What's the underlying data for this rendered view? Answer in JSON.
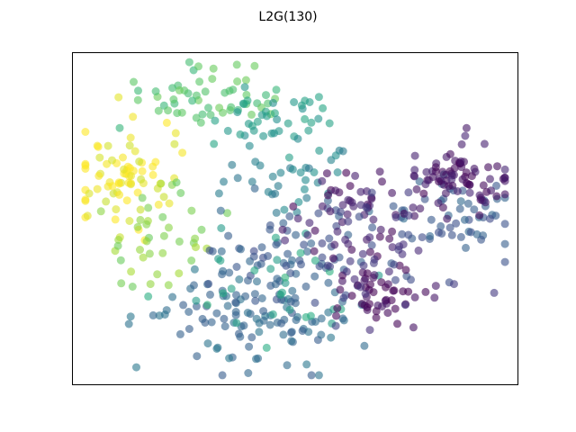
{
  "chart_data": {
    "type": "scatter",
    "title": "L2G(130)",
    "xlabel": "",
    "ylabel": "",
    "xlim": [
      0,
      100
    ],
    "ylim": [
      0,
      100
    ],
    "grid": false,
    "ticks": false,
    "legend": "none",
    "point_alpha": 0.6,
    "colormap": "viridis",
    "clusters": [
      {
        "color_value": 0.98,
        "center": [
          12,
          62
        ],
        "spread": [
          6,
          9
        ],
        "count": 75
      },
      {
        "color_value": 0.82,
        "center": [
          20,
          45
        ],
        "spread": [
          6,
          8
        ],
        "count": 40
      },
      {
        "color_value": 0.72,
        "center": [
          32,
          86
        ],
        "spread": [
          8,
          5
        ],
        "count": 55
      },
      {
        "color_value": 0.55,
        "center": [
          48,
          80
        ],
        "spread": [
          7,
          5
        ],
        "count": 40
      },
      {
        "color_value": 0.45,
        "center": [
          48,
          62
        ],
        "spread": [
          8,
          6
        ],
        "count": 35
      },
      {
        "color_value": 0.35,
        "center": [
          40,
          20
        ],
        "spread": [
          12,
          8
        ],
        "count": 110
      },
      {
        "color_value": 0.28,
        "center": [
          50,
          38
        ],
        "spread": [
          10,
          8
        ],
        "count": 70
      },
      {
        "color_value": 0.6,
        "center": [
          43,
          33
        ],
        "spread": [
          10,
          10
        ],
        "count": 30
      },
      {
        "color_value": 0.3,
        "center": [
          85,
          50
        ],
        "spread": [
          8,
          7
        ],
        "count": 55
      },
      {
        "color_value": 0.05,
        "center": [
          87,
          62
        ],
        "spread": [
          6,
          5
        ],
        "count": 80
      },
      {
        "color_value": 0.02,
        "center": [
          68,
          28
        ],
        "spread": [
          5,
          5
        ],
        "count": 50
      },
      {
        "color_value": 0.06,
        "center": [
          62,
          50
        ],
        "spread": [
          7,
          7
        ],
        "count": 55
      },
      {
        "color_value": 0.18,
        "center": [
          70,
          40
        ],
        "spread": [
          10,
          10
        ],
        "count": 40
      }
    ]
  }
}
